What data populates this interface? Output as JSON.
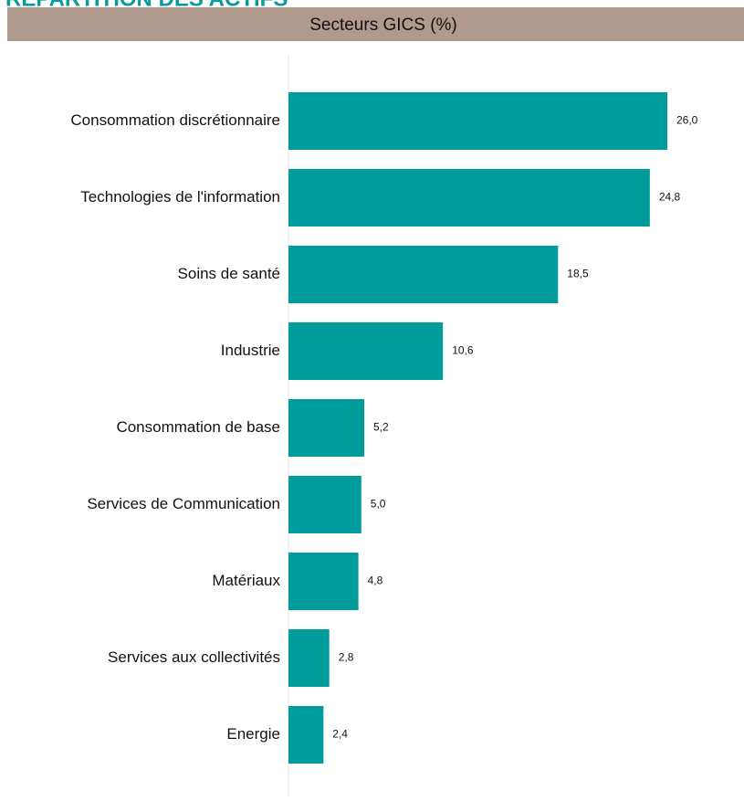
{
  "heading": "RÉPARTITION DES ACTIFS",
  "chart_data": {
    "type": "hbar",
    "title": "Secteurs GICS (%)",
    "categories": [
      "Consommation discrétionnaire",
      "Technologies de l'information",
      "Soins de santé",
      "Industrie",
      "Consommation de base",
      "Services de Communication",
      "Matériaux",
      "Services aux collectivités",
      "Energie"
    ],
    "values": [
      26.0,
      24.8,
      18.5,
      10.6,
      5.2,
      5.0,
      4.8,
      2.8,
      2.4
    ],
    "value_labels": [
      "26,0",
      "24,8",
      "18,5",
      "10,6",
      "5,2",
      "5,0",
      "4,8",
      "2,8",
      "2,4"
    ],
    "color": "#009b9b"
  }
}
